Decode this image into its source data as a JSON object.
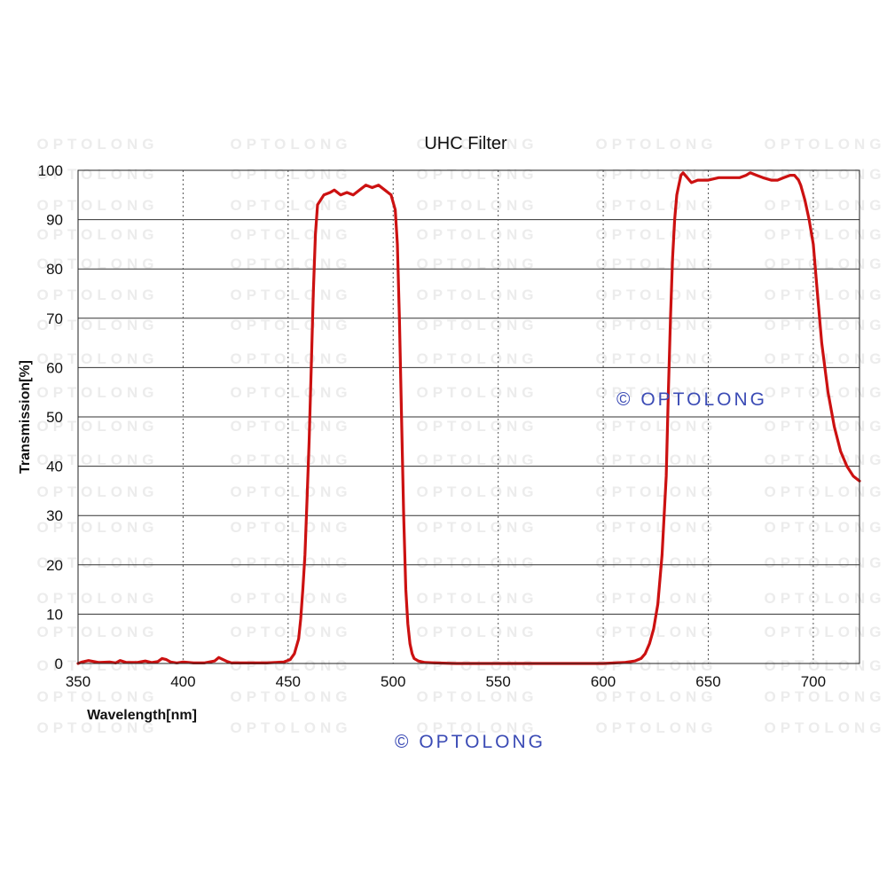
{
  "chart_data": {
    "type": "line",
    "title": "UHC Filter",
    "xlabel": "Wavelength[nm]",
    "ylabel": "Transmission[%]",
    "xlim": [
      350,
      722
    ],
    "ylim": [
      0,
      100
    ],
    "x_ticks": [
      350,
      400,
      450,
      500,
      550,
      600,
      650,
      700
    ],
    "y_ticks": [
      0,
      10,
      20,
      30,
      40,
      50,
      60,
      70,
      80,
      90,
      100
    ],
    "grid": true,
    "series": [
      {
        "color": "#cc1111",
        "x": [
          350,
          352,
          355,
          360,
          365,
          368,
          370,
          373,
          378,
          382,
          385,
          388,
          390,
          392,
          394,
          397,
          400,
          405,
          410,
          415,
          417,
          419,
          421,
          423,
          426,
          430,
          440,
          448,
          451,
          453,
          455,
          456,
          457,
          458,
          459,
          460,
          461,
          462,
          463,
          464,
          467,
          470,
          472,
          475,
          478,
          481,
          484,
          487,
          490,
          493,
          496,
          499,
          501,
          502,
          503,
          504,
          505,
          506,
          507,
          508,
          509,
          510,
          512,
          515,
          520,
          530,
          550,
          580,
          600,
          610,
          615,
          618,
          620,
          622,
          624,
          626,
          628,
          630,
          631,
          632,
          633,
          634,
          635,
          636,
          637,
          638,
          640,
          642,
          645,
          650,
          655,
          660,
          665,
          668,
          670,
          673,
          676,
          680,
          683,
          686,
          689,
          691,
          693,
          694,
          696,
          698,
          700,
          702,
          704,
          707,
          710,
          713,
          716,
          719,
          722
        ],
        "y": [
          0,
          0.3,
          0.6,
          0.2,
          0.3,
          0.1,
          0.6,
          0.2,
          0.2,
          0.5,
          0.2,
          0.4,
          1.0,
          0.8,
          0.3,
          0.1,
          0.3,
          0.1,
          0.1,
          0.5,
          1.2,
          0.8,
          0.4,
          0.1,
          0.1,
          0.1,
          0.1,
          0.3,
          0.8,
          2,
          5,
          9,
          15,
          22,
          33,
          45,
          60,
          75,
          87,
          93,
          95,
          95.5,
          96,
          95,
          95.5,
          95,
          96,
          97,
          96.5,
          97,
          96,
          95,
          92,
          85,
          70,
          50,
          30,
          15,
          8,
          4,
          2,
          1,
          0.5,
          0.2,
          0.1,
          0,
          0,
          0,
          0,
          0.2,
          0.5,
          1,
          2,
          4,
          7,
          12,
          22,
          38,
          55,
          70,
          82,
          90,
          95,
          97,
          99,
          99.5,
          98.5,
          97.5,
          98,
          98,
          98.5,
          98.5,
          98.5,
          99,
          99.5,
          99,
          98.5,
          98,
          98,
          98.5,
          99,
          99,
          98,
          97,
          94,
          90,
          85,
          75,
          65,
          55,
          48,
          43,
          40,
          38,
          37
        ]
      }
    ]
  },
  "watermark": {
    "text": "OPTOLONG",
    "color": "#ececec"
  },
  "inset_brand": {
    "text": "© OPTOLONG",
    "color": "#3b4bb5"
  },
  "footer_brand": {
    "text": "© OPTOLONG",
    "color": "#3b4bb5"
  }
}
